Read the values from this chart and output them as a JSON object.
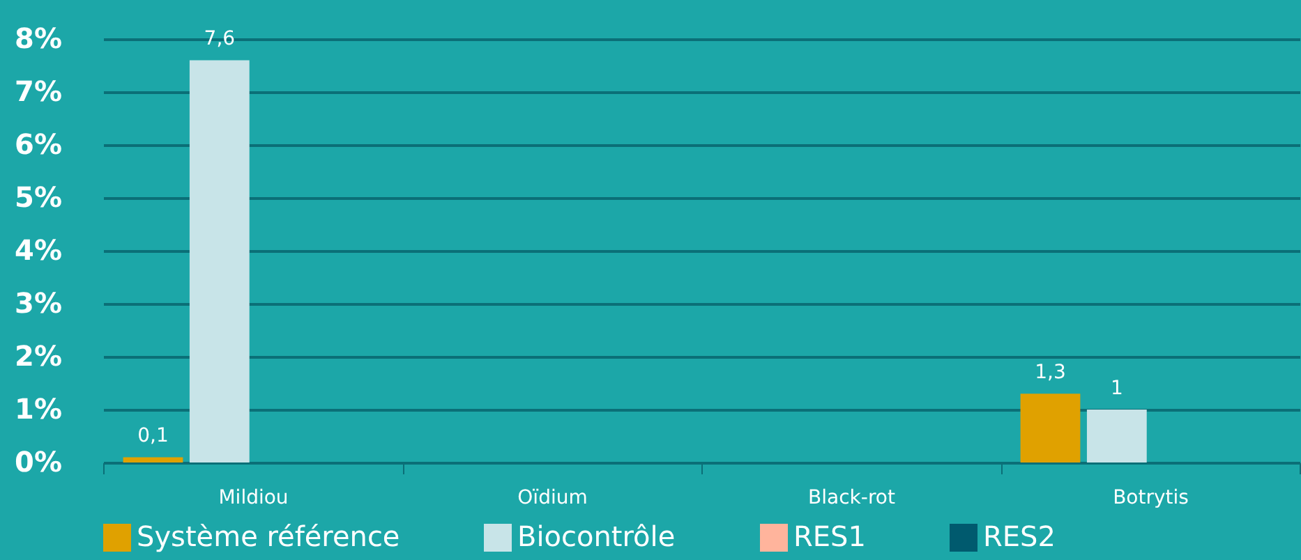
{
  "chart_data": {
    "type": "bar",
    "categories": [
      "Mildiou",
      "Oïdium",
      "Black-rot",
      "Botrytis"
    ],
    "series": [
      {
        "name": "Système référence",
        "color": "#e0a100",
        "values": [
          0.1,
          null,
          null,
          1.3
        ],
        "value_labels": [
          "0,1",
          null,
          null,
          "1,3"
        ]
      },
      {
        "name": "Biocontrôle",
        "color": "#c8e4e8",
        "values": [
          7.6,
          null,
          null,
          1
        ],
        "value_labels": [
          "7,6",
          null,
          null,
          "1"
        ]
      },
      {
        "name": "RES1",
        "color": "#ffb49c",
        "values": [
          0,
          0,
          0,
          0
        ]
      },
      {
        "name": "RES2",
        "color": "#005a6e",
        "values": [
          0,
          0,
          0,
          0
        ]
      }
    ],
    "ylim": [
      0,
      8
    ],
    "yticks": [
      {
        "value": 0,
        "label": "0%"
      },
      {
        "value": 1,
        "label": "1%"
      },
      {
        "value": 2,
        "label": "2%"
      },
      {
        "value": 3,
        "label": "3%"
      },
      {
        "value": 4,
        "label": "4%"
      },
      {
        "value": 5,
        "label": "5%"
      },
      {
        "value": 6,
        "label": "6%"
      },
      {
        "value": 7,
        "label": "7%"
      },
      {
        "value": 8,
        "label": "8%"
      }
    ],
    "grid": "y",
    "legend": "bottom"
  }
}
